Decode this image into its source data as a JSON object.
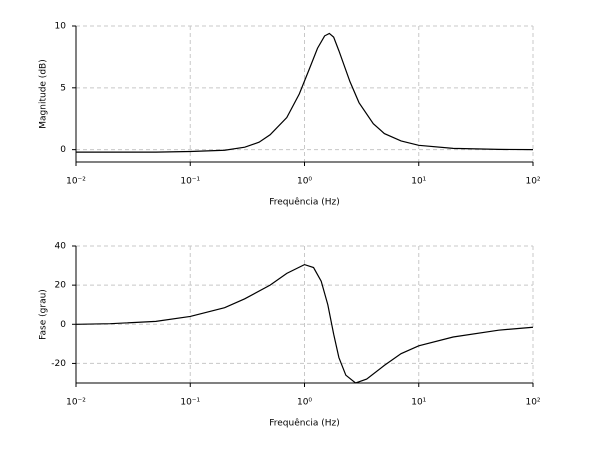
{
  "chart_data": [
    {
      "type": "line",
      "xlabel": "Frequência (Hz)",
      "ylabel": "Magnitude (dB)",
      "xscale": "log",
      "grid": true,
      "xlim": [
        0.01,
        100
      ],
      "ylim": [
        -1,
        10
      ],
      "xticks": [
        {
          "value": 0.01,
          "label": "10⁻²"
        },
        {
          "value": 0.1,
          "label": "10⁻¹"
        },
        {
          "value": 1,
          "label": "10⁰"
        },
        {
          "value": 10,
          "label": "10¹"
        },
        {
          "value": 100,
          "label": "10²"
        }
      ],
      "yticks": [
        0,
        5,
        10
      ],
      "x": [
        0.01,
        0.05,
        0.1,
        0.2,
        0.3,
        0.4,
        0.5,
        0.7,
        0.9,
        1.1,
        1.3,
        1.5,
        1.65,
        1.8,
        2.0,
        2.5,
        3,
        4,
        5,
        7,
        10,
        20,
        50,
        100
      ],
      "series": [
        {
          "color": "#000000",
          "values": [
            -0.2,
            -0.2,
            -0.15,
            -0.05,
            0.2,
            0.6,
            1.2,
            2.6,
            4.5,
            6.5,
            8.2,
            9.2,
            9.4,
            9.1,
            8.0,
            5.5,
            3.8,
            2.1,
            1.3,
            0.7,
            0.35,
            0.1,
            0.02,
            0
          ]
        }
      ]
    },
    {
      "type": "line",
      "xlabel": "Frequência (Hz)",
      "ylabel": "Fase (grau)",
      "xscale": "log",
      "grid": true,
      "xlim": [
        0.01,
        100
      ],
      "ylim": [
        -30,
        40
      ],
      "xticks": [
        {
          "value": 0.01,
          "label": "10⁻²"
        },
        {
          "value": 0.1,
          "label": "10⁻¹"
        },
        {
          "value": 1,
          "label": "10⁰"
        },
        {
          "value": 10,
          "label": "10¹"
        },
        {
          "value": 100,
          "label": "10²"
        }
      ],
      "yticks": [
        -20,
        0,
        20,
        40
      ],
      "x": [
        0.01,
        0.02,
        0.05,
        0.1,
        0.2,
        0.3,
        0.5,
        0.7,
        1.0,
        1.2,
        1.4,
        1.6,
        1.8,
        2.0,
        2.3,
        2.8,
        3.5,
        5,
        7,
        10,
        20,
        50,
        100
      ],
      "series": [
        {
          "color": "#000000",
          "values": [
            0,
            0.3,
            1.5,
            4,
            8.5,
            13,
            20,
            26,
            30.5,
            29,
            22,
            10,
            -5,
            -17,
            -26,
            -30,
            -28,
            -21,
            -15,
            -11,
            -6.5,
            -3,
            -1.5
          ]
        }
      ]
    }
  ]
}
